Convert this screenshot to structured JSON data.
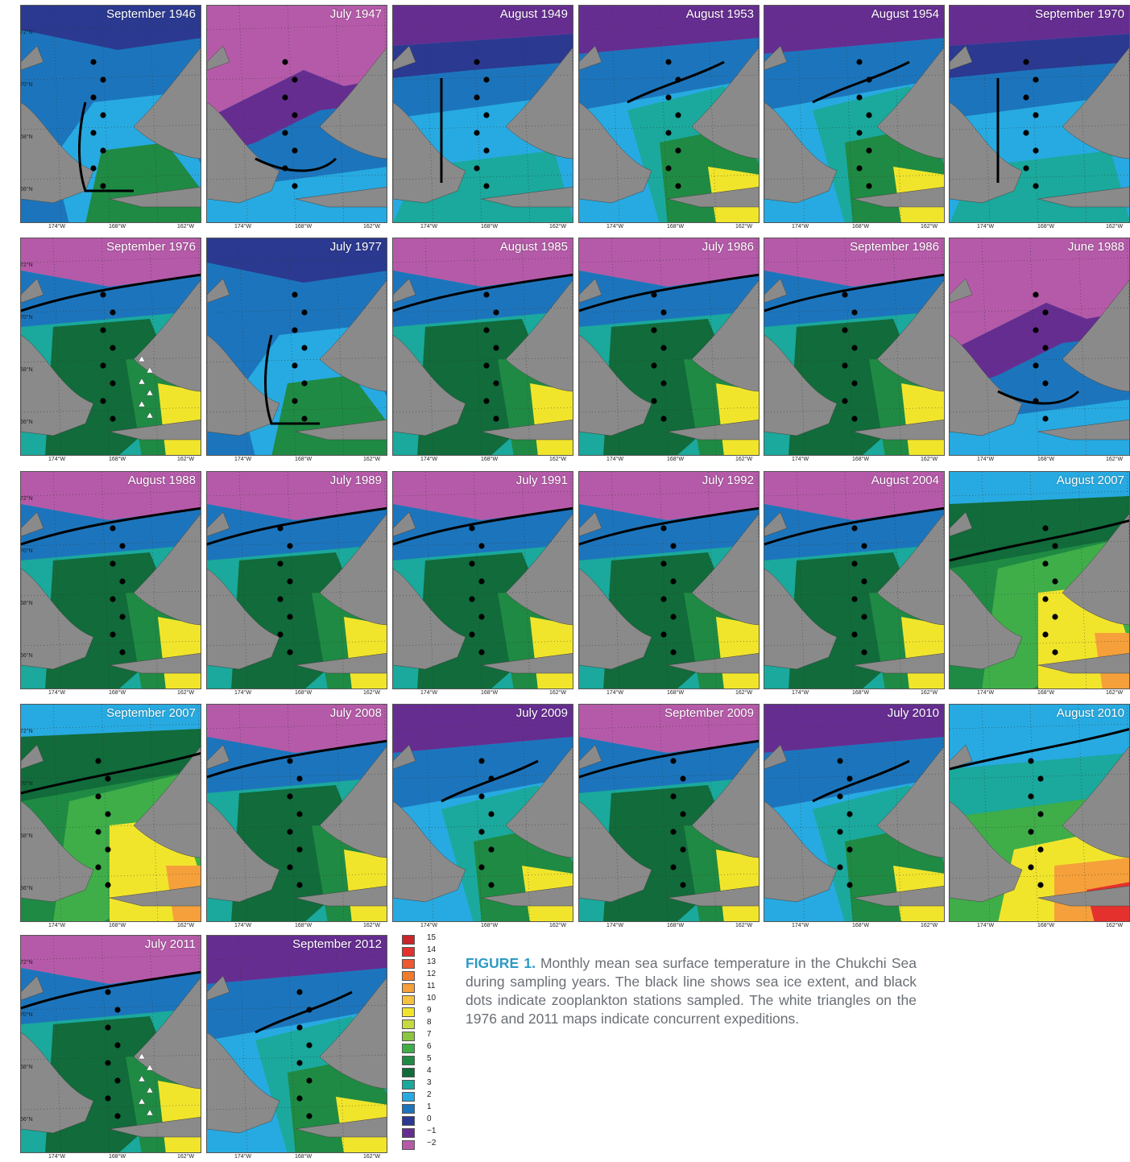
{
  "panels": [
    {
      "title": "September 1946"
    },
    {
      "title": "July 1947"
    },
    {
      "title": "August 1949"
    },
    {
      "title": "August 1953"
    },
    {
      "title": "August 1954"
    },
    {
      "title": "September 1970"
    },
    {
      "title": "September 1976"
    },
    {
      "title": "July 1977"
    },
    {
      "title": "August 1985"
    },
    {
      "title": "July 1986"
    },
    {
      "title": "September 1986"
    },
    {
      "title": "June 1988"
    },
    {
      "title": "August 1988"
    },
    {
      "title": "July 1989"
    },
    {
      "title": "July 1991"
    },
    {
      "title": "July 1992"
    },
    {
      "title": "August 2004"
    },
    {
      "title": "August 2007"
    },
    {
      "title": "September 2007"
    },
    {
      "title": "July 2008"
    },
    {
      "title": "July 2009"
    },
    {
      "title": "September 2009"
    },
    {
      "title": "July 2010"
    },
    {
      "title": "August 2010"
    },
    {
      "title": "July 2011"
    },
    {
      "title": "September 2012"
    }
  ],
  "axes": {
    "lat_labels": [
      "72°N",
      "70°N",
      "68°N",
      "66°N"
    ],
    "lon_labels": [
      "174°W",
      "168°W",
      "162°W"
    ]
  },
  "legend": {
    "levels": [
      {
        "label": "15",
        "color": "#c9252b"
      },
      {
        "label": "14",
        "color": "#e4312d"
      },
      {
        "label": "13",
        "color": "#ee5a2f"
      },
      {
        "label": "12",
        "color": "#f27c2e"
      },
      {
        "label": "11",
        "color": "#f5a03a"
      },
      {
        "label": "10",
        "color": "#f7c043"
      },
      {
        "label": "9",
        "color": "#f1e52c"
      },
      {
        "label": "8",
        "color": "#c6d93f"
      },
      {
        "label": "7",
        "color": "#8cc63f"
      },
      {
        "label": "6",
        "color": "#3fae49"
      },
      {
        "label": "5",
        "color": "#1f8a43"
      },
      {
        "label": "4",
        "color": "#116b3a"
      },
      {
        "label": "3",
        "color": "#1aa99c"
      },
      {
        "label": "2",
        "color": "#27aae1"
      },
      {
        "label": "1",
        "color": "#1c75bc"
      },
      {
        "label": "0",
        "color": "#2b3990"
      },
      {
        "label": "−1",
        "color": "#662d91"
      },
      {
        "label": "−2",
        "color": "#b55aa8"
      }
    ]
  },
  "caption": {
    "figure_label": "FIGURE 1.",
    "text": "Monthly mean sea surface temperature in the Chukchi Sea during sampling years. The black line shows sea ice extent, and black dots indicate zooplankton stations sampled. The white triangles on the 1976 and 2011 maps indicate concurrent expeditions."
  },
  "colors": {
    "land": "#8a8a8a",
    "ice_edge": "#000000",
    "station": "#000000",
    "concurrent_expedition": "#ffffff",
    "caption_label": "#2d9ac4",
    "caption_text": "#6a6f75"
  }
}
